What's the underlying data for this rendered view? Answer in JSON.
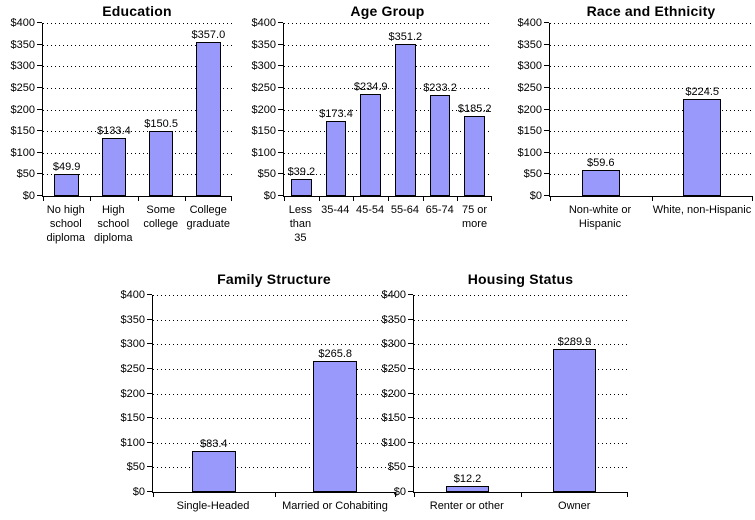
{
  "style": {
    "bar_fill": "#9999FB",
    "bar_border": "#000000",
    "grid_color": "#000000",
    "axis_color": "#000000",
    "text_color": "#000000",
    "background": "#FFFFFF"
  },
  "chart_data": [
    {
      "type": "bar",
      "title": "Education",
      "categories": [
        [
          "No high",
          "school",
          "diploma"
        ],
        [
          "High",
          "school",
          "diploma"
        ],
        [
          "Some",
          "college"
        ],
        [
          "College",
          "graduate"
        ]
      ],
      "values": [
        49.9,
        133.4,
        150.5,
        357.0
      ],
      "value_labels": [
        "$49.9",
        "$133.4",
        "$150.5",
        "$357.0"
      ],
      "ylim": [
        0,
        400
      ],
      "ytick_step": 50,
      "ytick_labels": [
        "$0",
        "$50",
        "$100",
        "$150",
        "$200",
        "$250",
        "$300",
        "$350",
        "$400"
      ],
      "grid": "dotted-horizontal",
      "legend": "none",
      "bar_width_pct": 52
    },
    {
      "type": "bar",
      "title": "Age Group",
      "categories": [
        [
          "Less",
          "than",
          "35"
        ],
        [
          "35-44"
        ],
        [
          "45-54"
        ],
        [
          "55-64"
        ],
        [
          "65-74"
        ],
        [
          "75 or",
          "more"
        ]
      ],
      "values": [
        39.2,
        173.4,
        234.9,
        351.2,
        233.2,
        185.2
      ],
      "value_labels": [
        "$39.2",
        "$173.4",
        "$234.9",
        "$351.2",
        "$233.2",
        "$185.2"
      ],
      "ylim": [
        0,
        400
      ],
      "ytick_step": 50,
      "ytick_labels": [
        "$0",
        "$50",
        "$100",
        "$150",
        "$200",
        "$250",
        "$300",
        "$350",
        "$400"
      ],
      "grid": "dotted-horizontal",
      "legend": "none",
      "bar_width_pct": 60
    },
    {
      "type": "bar",
      "title": "Race and Ethnicity",
      "categories": [
        [
          "Non-white or",
          "Hispanic"
        ],
        [
          "White, non-Hispanic"
        ]
      ],
      "values": [
        59.6,
        224.5
      ],
      "value_labels": [
        "$59.6",
        "$224.5"
      ],
      "ylim": [
        0,
        400
      ],
      "ytick_step": 50,
      "ytick_labels": [
        "$0",
        "$50",
        "$100",
        "$150",
        "$200",
        "$250",
        "$300",
        "$350",
        "$400"
      ],
      "grid": "dotted-horizontal",
      "legend": "none",
      "bar_width_pct": 37
    },
    {
      "type": "bar",
      "title": "Family Structure",
      "categories": [
        [
          "Single-Headed"
        ],
        [
          "Married or Cohabiting"
        ]
      ],
      "values": [
        83.4,
        265.8
      ],
      "value_labels": [
        "$83.4",
        "$265.8"
      ],
      "ylim": [
        0,
        400
      ],
      "ytick_step": 50,
      "ytick_labels": [
        "$0",
        "$50",
        "$100",
        "$150",
        "$200",
        "$250",
        "$300",
        "$350",
        "$400"
      ],
      "grid": "dotted-horizontal",
      "legend": "none",
      "bar_width_pct": 36
    },
    {
      "type": "bar",
      "title": "Housing Status",
      "categories": [
        [
          "Renter or other"
        ],
        [
          "Owner"
        ]
      ],
      "values": [
        12.2,
        289.9
      ],
      "value_labels": [
        "$12.2",
        "$289.9"
      ],
      "ylim": [
        0,
        400
      ],
      "ytick_step": 50,
      "ytick_labels": [
        "$0",
        "$50",
        "$100",
        "$150",
        "$200",
        "$250",
        "$300",
        "$350",
        "$400"
      ],
      "grid": "dotted-horizontal",
      "legend": "none",
      "bar_width_pct": 40
    }
  ]
}
